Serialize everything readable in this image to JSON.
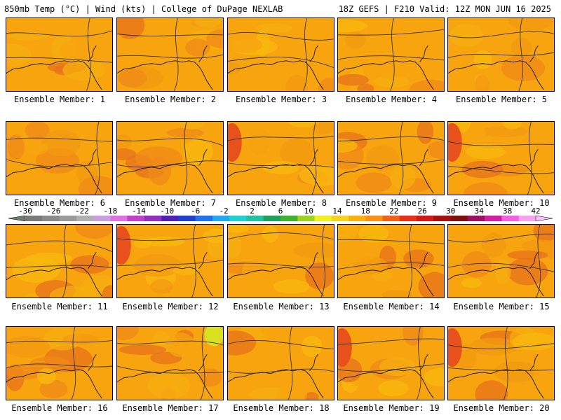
{
  "header": {
    "left": "850mb Temp (°C) | Wind (kts) | College of DuPage NEXLAB",
    "right": "18Z GEFS | F210 Valid: 12Z MON JUN 16 2025"
  },
  "panels": [
    {
      "label": "Ensemble Member: 1"
    },
    {
      "label": "Ensemble Member: 2"
    },
    {
      "label": "Ensemble Member: 3"
    },
    {
      "label": "Ensemble Member: 4"
    },
    {
      "label": "Ensemble Member: 5"
    },
    {
      "label": "Ensemble Member: 6"
    },
    {
      "label": "Ensemble Member: 7"
    },
    {
      "label": "Ensemble Member: 8"
    },
    {
      "label": "Ensemble Member: 9"
    },
    {
      "label": "Ensemble Member: 10"
    },
    {
      "label": "Ensemble Member: 11"
    },
    {
      "label": "Ensemble Member: 12"
    },
    {
      "label": "Ensemble Member: 13"
    },
    {
      "label": "Ensemble Member: 14"
    },
    {
      "label": "Ensemble Member: 15"
    },
    {
      "label": "Ensemble Member: 16"
    },
    {
      "label": "Ensemble Member: 17"
    },
    {
      "label": "Ensemble Member: 18"
    },
    {
      "label": "Ensemble Member: 19"
    },
    {
      "label": "Ensemble Member: 20"
    }
  ],
  "colorbar": {
    "ticks": [
      "-30",
      "-26",
      "-22",
      "-18",
      "-14",
      "-10",
      "-6",
      "-2",
      "2",
      "6",
      "10",
      "14",
      "18",
      "22",
      "26",
      "30",
      "34",
      "38",
      "42"
    ],
    "colors": [
      "#7a7a7a",
      "#8a8a8a",
      "#9a9a9a",
      "#b0b0b0",
      "#c8a0e0",
      "#e070e0",
      "#c040c8",
      "#9030c0",
      "#5020b8",
      "#2040d0",
      "#2070f0",
      "#20a8f0",
      "#20d0d0",
      "#20c0a0",
      "#20a060",
      "#40b030",
      "#a0d020",
      "#f0f020",
      "#f8d020",
      "#f8b010",
      "#f89018",
      "#f06018",
      "#e83018",
      "#d01818",
      "#a81010",
      "#801010",
      "#a01060",
      "#d020a0",
      "#f060e0",
      "#f8a0f0"
    ],
    "range": [
      -30,
      42
    ]
  }
}
